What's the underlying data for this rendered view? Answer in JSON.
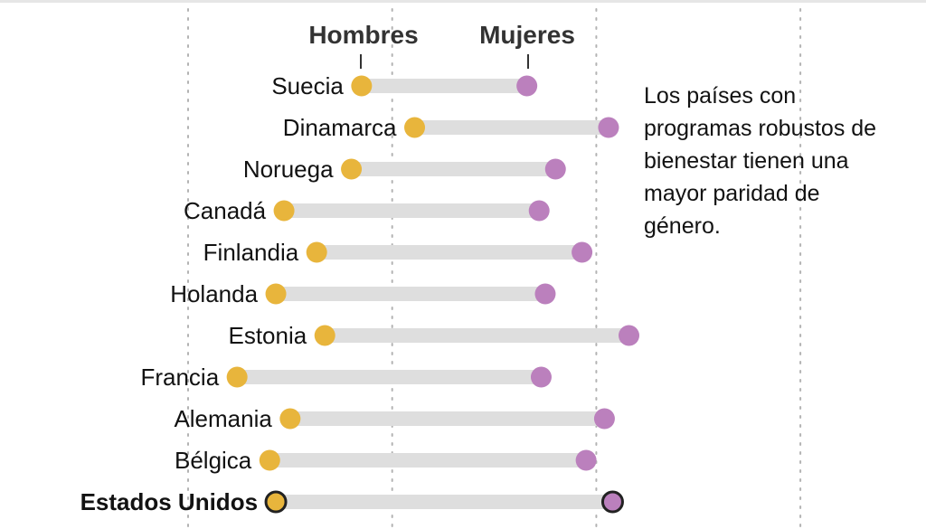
{
  "chart_data": {
    "type": "dumbbell",
    "title": "",
    "xlabel": "",
    "ylabel": "",
    "x_units": "relative (gridline units; no tick labels shown)",
    "xlim": [
      0,
      3
    ],
    "gridlines": [
      0,
      1,
      2,
      3
    ],
    "grid": true,
    "legend": [
      {
        "name": "Hombres",
        "color": "#e8b53c"
      },
      {
        "name": "Mujeres",
        "color": "#bb80bd"
      }
    ],
    "categories": [
      "Suecia",
      "Dinamarca",
      "Noruega",
      "Canadá",
      "Finlandia",
      "Holanda",
      "Estonia",
      "Francia",
      "Alemania",
      "Bélgica",
      "Estados Unidos"
    ],
    "highlight": "Estados Unidos",
    "series": [
      {
        "name": "Hombres",
        "values": [
          0.85,
          1.11,
          0.8,
          0.47,
          0.63,
          0.43,
          0.67,
          0.24,
          0.5,
          0.4,
          0.43
        ]
      },
      {
        "name": "Mujeres",
        "values": [
          1.66,
          2.06,
          1.8,
          1.72,
          1.93,
          1.75,
          2.16,
          1.73,
          2.04,
          1.95,
          2.08
        ]
      }
    ],
    "annotation": "Los países con programas robustos de bienestar tienen una mayor paridad de género."
  },
  "colors": {
    "hombres": "#e8b53c",
    "mujeres": "#bb80bd",
    "bar": "#dedede",
    "grid": "#b3b3b3",
    "highlight_stroke": "#222222"
  },
  "annotation_lines": [
    "Los países con",
    "programas robustos de",
    "bienestar tienen una",
    "mayor paridad de",
    "género."
  ]
}
